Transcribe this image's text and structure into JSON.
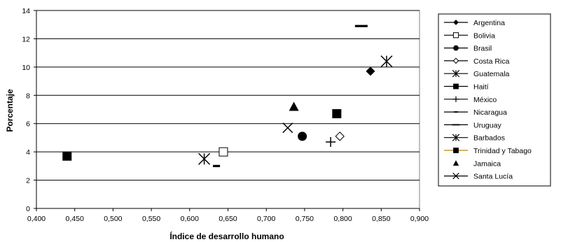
{
  "chart_data": {
    "type": "scatter",
    "title": "",
    "xlabel": "Índice de desarrollo humano",
    "ylabel": "Porcentaje",
    "xlim": [
      0.4,
      0.9
    ],
    "ylim": [
      0,
      14
    ],
    "x_ticks": [
      0.4,
      0.45,
      0.5,
      0.55,
      0.6,
      0.65,
      0.7,
      0.75,
      0.8,
      0.85,
      0.9
    ],
    "x_tick_labels": [
      "0,400",
      "0,450",
      "0,500",
      "0,550",
      "0,600",
      "0,650",
      "0,700",
      "0,750",
      "0,800",
      "0,850",
      "0,900"
    ],
    "y_ticks": [
      0,
      2,
      4,
      6,
      8,
      10,
      12,
      14
    ],
    "y_tick_labels": [
      "0",
      "2",
      "4",
      "6",
      "8",
      "10",
      "12",
      "14"
    ],
    "grid": "horizontal",
    "legend_position": "right",
    "series": [
      {
        "name": "Argentina",
        "marker": "diamond-filled",
        "x": 0.836,
        "y": 9.7
      },
      {
        "name": "Bolivia",
        "marker": "square-open",
        "x": 0.644,
        "y": 4.0
      },
      {
        "name": "Brasil",
        "marker": "circle-filled",
        "x": 0.747,
        "y": 5.1
      },
      {
        "name": "Costa Rica",
        "marker": "diamond-open",
        "x": 0.796,
        "y": 5.1
      },
      {
        "name": "Guatemala",
        "marker": "star",
        "x": 0.619,
        "y": 3.5
      },
      {
        "name": "Haití",
        "marker": "square-filled",
        "x": 0.44,
        "y": 3.7
      },
      {
        "name": "México",
        "marker": "plus",
        "x": 0.784,
        "y": 4.7
      },
      {
        "name": "Nicaragua",
        "marker": "dash-short",
        "x": 0.635,
        "y": 3.0
      },
      {
        "name": "Uruguay",
        "marker": "dash-long",
        "x": 0.824,
        "y": 12.9
      },
      {
        "name": "Barbados",
        "marker": "star",
        "x": 0.857,
        "y": 10.4
      },
      {
        "name": "Trinidad y Tabago",
        "marker": "square-filled",
        "x": 0.792,
        "y": 6.7
      },
      {
        "name": "Jamaica",
        "marker": "triangle-filled",
        "x": 0.736,
        "y": 7.2
      },
      {
        "name": "Santa Lucía",
        "marker": "x",
        "x": 0.728,
        "y": 5.7
      }
    ]
  }
}
